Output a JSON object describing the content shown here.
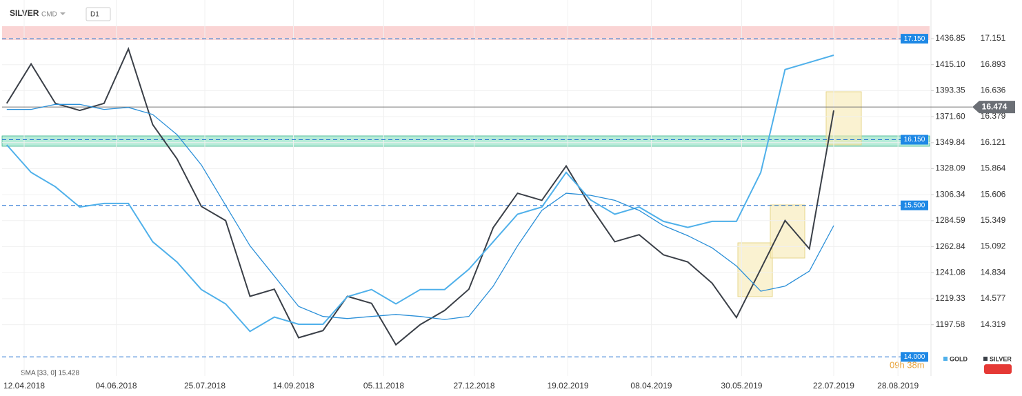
{
  "header": {
    "symbol": "SILVER",
    "market": "CMD",
    "interval": "D1"
  },
  "indicator": "SMA [33, 0] 15.428",
  "countdown": "09h 38m",
  "chart_data": {
    "type": "line",
    "x": [
      "02.04.2018",
      "16.04.2018",
      "30.04.2018",
      "14.05.2018",
      "28.05.2018",
      "11.06.2018",
      "25.06.2018",
      "09.07.2018",
      "23.07.2018",
      "06.08.2018",
      "20.08.2018",
      "03.09.2018",
      "17.09.2018",
      "01.10.2018",
      "15.10.2018",
      "29.10.2018",
      "12.11.2018",
      "26.11.2018",
      "10.12.2018",
      "24.12.2018",
      "07.01.2019",
      "21.01.2019",
      "04.02.2019",
      "18.02.2019",
      "04.03.2019",
      "18.03.2019",
      "01.04.2019",
      "15.04.2019",
      "29.04.2019",
      "13.05.2019",
      "27.05.2019",
      "10.06.2019",
      "24.06.2019",
      "08.07.2019",
      "22.07.2019"
    ],
    "series": [
      {
        "name": "SILVER",
        "color": "#3a3f47",
        "values": [
          16.51,
          16.9,
          16.51,
          16.44,
          16.51,
          17.05,
          16.3,
          15.96,
          15.49,
          15.35,
          14.6,
          14.67,
          14.19,
          14.26,
          14.6,
          14.53,
          14.12,
          14.32,
          14.46,
          14.67,
          15.28,
          15.62,
          15.55,
          15.89,
          15.49,
          15.14,
          15.21,
          15.01,
          14.94,
          14.73,
          14.39,
          14.87,
          15.35,
          15.07,
          16.44
        ]
      },
      {
        "name": "GOLD",
        "color": "#4fb0ea",
        "axis": "y2",
        "values": [
          1348,
          1325,
          1313,
          1296,
          1299,
          1299,
          1267,
          1250,
          1227,
          1215,
          1192,
          1204,
          1198,
          1198,
          1221,
          1227,
          1215,
          1227,
          1227,
          1244,
          1267,
          1290,
          1296,
          1325,
          1302,
          1290,
          1296,
          1284,
          1279,
          1284,
          1284,
          1325,
          1411,
          1417,
          1423
        ]
      }
    ],
    "sma": {
      "color": "#2a8fd8",
      "values": [
        16.45,
        16.45,
        16.5,
        16.5,
        16.45,
        16.47,
        16.4,
        16.2,
        15.9,
        15.5,
        15.1,
        14.8,
        14.5,
        14.4,
        14.38,
        14.4,
        14.42,
        14.4,
        14.37,
        14.4,
        14.7,
        15.1,
        15.45,
        15.62,
        15.6,
        15.55,
        15.45,
        15.3,
        15.2,
        15.08,
        14.9,
        14.65,
        14.7,
        14.85,
        15.3
      ]
    },
    "xticks": [
      "12.04.2018",
      "04.06.2018",
      "25.07.2018",
      "14.09.2018",
      "05.11.2018",
      "27.12.2018",
      "19.02.2019",
      "08.04.2019",
      "30.05.2019",
      "22.07.2019",
      "28.08.2019"
    ],
    "ylim": [
      13.845,
      17.465
    ],
    "yticks": [
      17.151,
      16.893,
      16.636,
      16.379,
      16.121,
      15.864,
      15.606,
      15.349,
      15.092,
      14.834,
      14.577,
      14.319
    ],
    "y2lim": [
      1157.6,
      1463.4
    ],
    "y2ticks": [
      1436.85,
      {
        "value": 1415.1,
        "label": "1415.10"
      },
      1393.35,
      {
        "value": 1371.6,
        "label": "1371.60"
      },
      1349.84,
      1328.09,
      1306.34,
      1284.59,
      1262.84,
      1241.08,
      1219.33,
      1197.58
    ],
    "levels": [
      {
        "value": 17.15,
        "label": "17.150"
      },
      {
        "value": 16.15,
        "label": "16.150"
      },
      {
        "value": 15.5,
        "label": "15.500"
      },
      {
        "value": 14,
        "label": "14.000"
      }
    ],
    "current": {
      "value": 16.474,
      "label": "16.474"
    },
    "grid": true
  }
}
